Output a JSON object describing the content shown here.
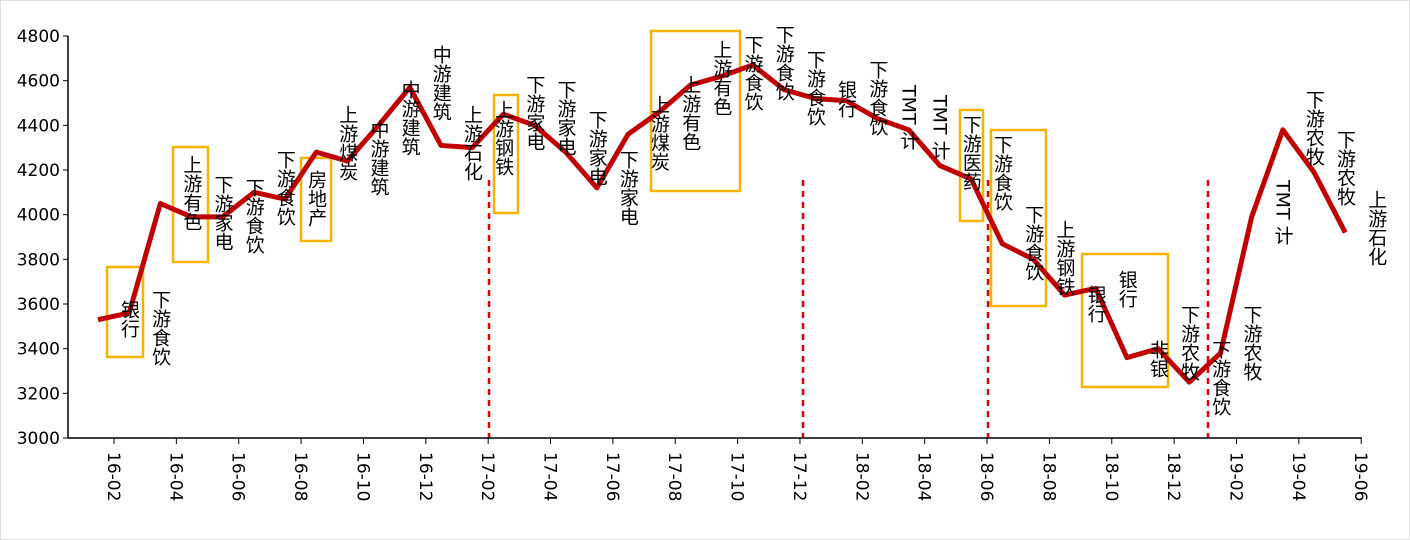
{
  "chart_data": {
    "type": "line",
    "categories": [
      "16-02",
      null,
      "16-04",
      null,
      "16-06",
      null,
      "16-08",
      null,
      "16-10",
      null,
      "16-12",
      null,
      "17-02",
      null,
      "17-04",
      null,
      "17-06",
      null,
      "17-08",
      null,
      "17-10",
      null,
      "17-12",
      null,
      "18-02",
      null,
      "18-04",
      null,
      "18-06",
      null,
      "18-08",
      null,
      "18-10",
      null,
      "18-12",
      null,
      "19-02",
      null,
      "19-04",
      null,
      "19-06"
    ],
    "values": [
      3530,
      3560,
      4050,
      3990,
      3990,
      4100,
      4070,
      4280,
      4240,
      4400,
      4570,
      4310,
      4300,
      4450,
      4400,
      4280,
      4120,
      4360,
      4460,
      4580,
      4620,
      4670,
      4560,
      4520,
      4510,
      4430,
      4380,
      4220,
      4160,
      3870,
      3800,
      3640,
      3670,
      3360,
      3400,
      3250,
      3380,
      3990,
      4380,
      4190,
      3920
    ],
    "color": "#c00000",
    "ylim": [
      3000,
      4800
    ],
    "yticks": [
      3000,
      3200,
      3400,
      3600,
      3800,
      4000,
      4200,
      4400,
      4600,
      4800
    ],
    "annotations": [
      "银行",
      "下游食饮",
      "上游有色",
      "下游家电",
      "下游食饮",
      "下游食饮",
      "房地产",
      "上游煤炭",
      "中游建筑",
      "中游建筑",
      "中游建筑",
      "上游石化",
      "上游钢铁",
      "下游家电",
      "下游家电",
      "下游家电",
      "下游家电",
      "上游煤炭",
      "上游有色",
      "上游有色",
      "下游食饮",
      "下游食饮",
      "下游食饮",
      "银行",
      "下游食饮",
      "TMT 计",
      "TMT 计",
      "下游医药",
      "下游食饮",
      "下游食饮",
      "上游钢铁",
      "银行",
      "银行",
      "非银",
      "下游农牧",
      "下游食饮",
      "下游农牧",
      "TMT 计",
      "下游农牧",
      "下游农牧",
      "上游石化"
    ]
  }
}
